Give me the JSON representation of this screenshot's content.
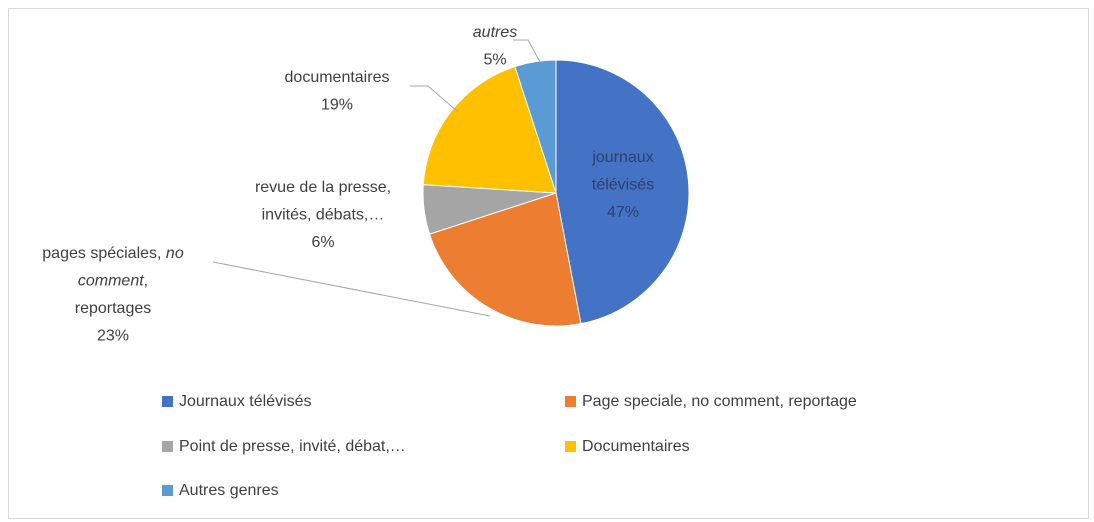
{
  "chart_data": {
    "type": "pie",
    "categories": [
      "Journaux télévisés",
      "Page speciale, no comment, reportage",
      "Point de presse, invité, débat,…",
      "Documentaires",
      "Autres genres"
    ],
    "values": [
      47,
      23,
      6,
      19,
      5
    ],
    "value_labels": [
      "47%",
      "23%",
      "6%",
      "19%",
      "5%"
    ],
    "colors": [
      "#4472c4",
      "#ed7d31",
      "#a5a5a5",
      "#ffc000",
      "#5b9bd5"
    ],
    "data_labels": [
      [
        [
          "journaux"
        ],
        [
          "télévisés"
        ]
      ],
      [
        [
          "pages spéciales, ",
          {
            "text": "no",
            "italic": true
          }
        ],
        [
          {
            "text": "comment",
            "italic": true
          },
          ","
        ],
        [
          "reportages"
        ]
      ],
      [
        [
          "revue de la presse,"
        ],
        [
          "invités, débats,…"
        ]
      ],
      [
        [
          "documentaires"
        ]
      ],
      [
        [
          {
            "text": "autres",
            "italic": true
          }
        ]
      ]
    ],
    "legend": "bottom"
  }
}
